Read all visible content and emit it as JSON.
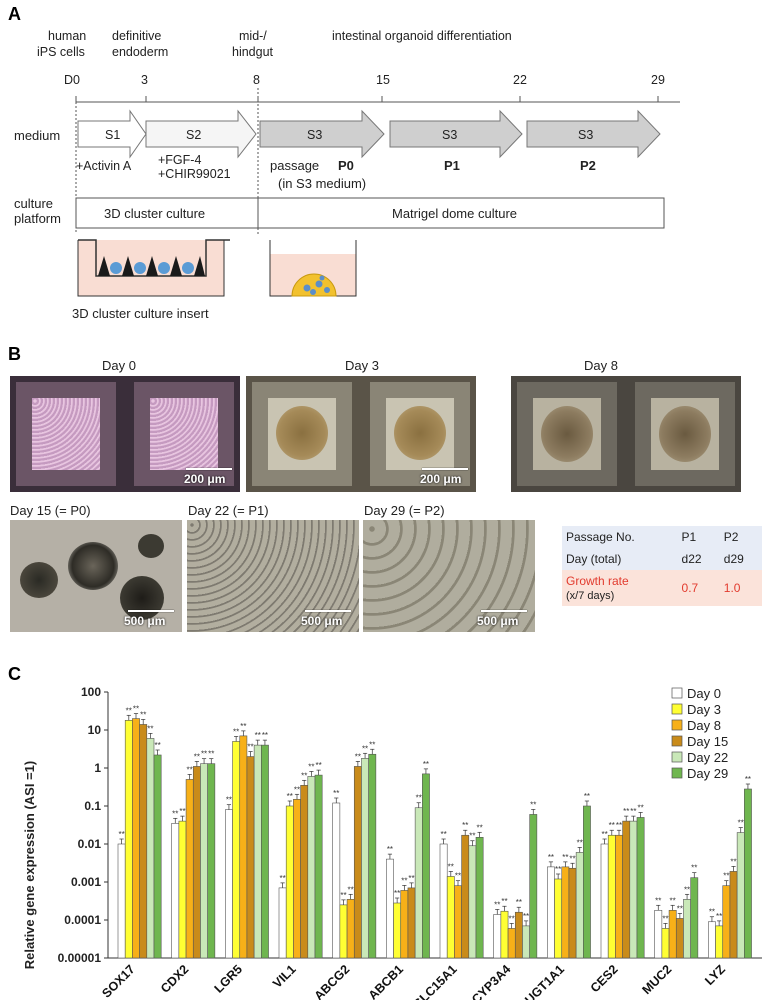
{
  "panelA": {
    "label": "A",
    "stages": [
      {
        "line1": "human",
        "line2": "iPS cells"
      },
      {
        "line1": "definitive",
        "line2": "endoderm"
      },
      {
        "line1": "mid-/",
        "line2": "hindgut"
      },
      {
        "line1": "intestinal organoid differentiation",
        "line2": ""
      }
    ],
    "days": [
      "D0",
      "3",
      "8",
      "15",
      "22",
      "29"
    ],
    "medium_label": "medium",
    "arrows": [
      "S1",
      "S2",
      "S3",
      "S3",
      "S3"
    ],
    "additions": {
      "s1": "+Activin A",
      "s2a": "+FGF-4",
      "s2b": "+CHIR99021",
      "passage": "passage",
      "passage_note": "(in S3 medium)",
      "p0": "P0",
      "p1": "P1",
      "p2": "P2"
    },
    "platform_label1": "culture",
    "platform_label2": "platform",
    "platform1": "3D cluster culture",
    "platform2": "Matrigel dome culture",
    "insert_label": "3D cluster culture insert"
  },
  "panelB": {
    "label": "B",
    "top_days": [
      "Day 0",
      "Day 3",
      "Day 8"
    ],
    "bottom_days": [
      "Day 15 (= P0)",
      "Day 22 (= P1)",
      "Day 29  (= P2)"
    ],
    "scale_200": "200 μm",
    "scale_500": "500 μm",
    "table": {
      "headers": [
        "Passage No.",
        "P1",
        "P2"
      ],
      "day_label": "Day (total)",
      "days": [
        "d22",
        "d29"
      ],
      "growth_label1": "Growth rate",
      "growth_label2": "(x/7 days)",
      "growth": [
        "0.7",
        "1.0"
      ]
    }
  },
  "panelC": {
    "label": "C",
    "significance": "**",
    "colors": [
      "#ffffff",
      "#ffff33",
      "#f7b018",
      "#c98b1a",
      "#c9e8b8",
      "#6fb64f"
    ]
  },
  "chart_data": {
    "type": "bar",
    "title": "",
    "xlabel": "",
    "ylabel": "Relative gene expression (ASI =1)",
    "yscale": "log",
    "ylim": [
      1e-05,
      100
    ],
    "yticks": [
      "100",
      "10",
      "1",
      "0.1",
      "0.01",
      "0.001",
      "0.0001",
      "0.00001"
    ],
    "categories": [
      "SOX17",
      "CDX2",
      "LGR5",
      "VIL1",
      "ABCG2",
      "ABCB1",
      "SLC15A1",
      "CYP3A4",
      "UGT1A1",
      "CES2",
      "MUC2",
      "LYZ"
    ],
    "legend_position": "top-right",
    "series": [
      {
        "name": "Day 0",
        "values": [
          0.01,
          0.035,
          0.08,
          0.0007,
          0.12,
          0.004,
          0.01,
          0.00014,
          0.0025,
          0.01,
          0.00018,
          9e-05
        ]
      },
      {
        "name": "Day 3",
        "values": [
          18,
          0.04,
          5,
          0.1,
          0.00025,
          0.00028,
          0.0014,
          0.00017,
          0.0012,
          0.017,
          6e-05,
          7e-05
        ]
      },
      {
        "name": "Day 8",
        "values": [
          20,
          0.5,
          7,
          0.15,
          0.00035,
          0.0006,
          0.0008,
          6e-05,
          0.0025,
          0.017,
          0.00018,
          0.0008
        ]
      },
      {
        "name": "Day 15",
        "values": [
          14,
          1.1,
          2,
          0.35,
          1.1,
          0.0007,
          0.017,
          0.00016,
          0.0023,
          0.04,
          0.00011,
          0.0019
        ]
      },
      {
        "name": "Day 22",
        "values": [
          6,
          1.3,
          4,
          0.6,
          1.8,
          0.09,
          0.009,
          7e-05,
          0.006,
          0.04,
          0.00035,
          0.02
        ]
      },
      {
        "name": "Day 29",
        "values": [
          2.2,
          1.3,
          4,
          0.65,
          2.3,
          0.7,
          0.015,
          0.06,
          0.1,
          0.05,
          0.0013,
          0.28
        ]
      }
    ]
  }
}
